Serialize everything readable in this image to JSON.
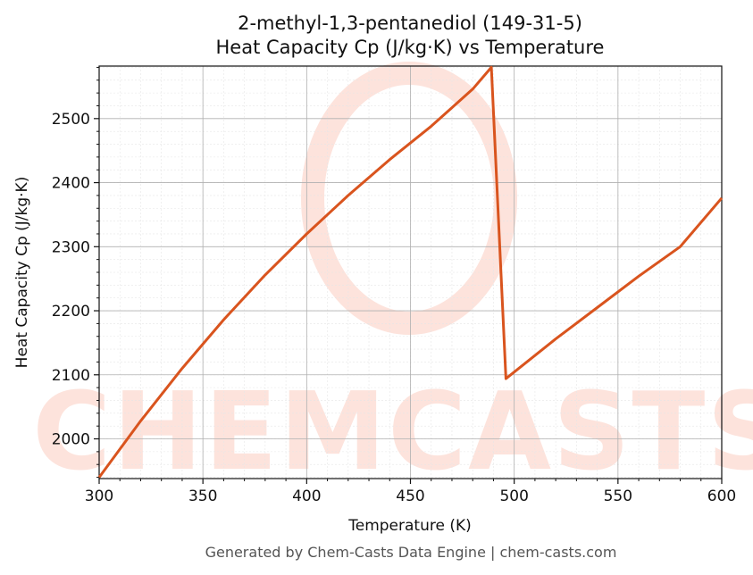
{
  "chart_data": {
    "type": "line",
    "title": "2-methyl-1,3-pentanediol (149-31-5)",
    "subtitle": "Heat Capacity Cp (J/kg·K) vs Temperature",
    "xlabel": "Temperature (K)",
    "ylabel": "Heat Capacity Cp (J/kg·K)",
    "xlim": [
      300,
      600
    ],
    "ylim": [
      1938,
      2582
    ],
    "xticks": [
      300,
      350,
      400,
      450,
      500,
      550,
      600
    ],
    "yticks": [
      2000,
      2100,
      2200,
      2300,
      2400,
      2500
    ],
    "grid": true,
    "line_color": "#d9541e",
    "series": [
      {
        "x": [
          300,
          320,
          340,
          360,
          380,
          400,
          420,
          440,
          460,
          480,
          489,
          496,
          520,
          540,
          560,
          580,
          600
        ],
        "y": [
          1940,
          2028,
          2110,
          2186,
          2256,
          2320,
          2380,
          2436,
          2488,
          2546,
          2580,
          2094,
          2156,
          2205,
          2254,
          2300,
          2376
        ]
      }
    ]
  },
  "footer": "Generated by Chem-Casts Data Engine | chem-casts.com",
  "watermark": "CHEMCASTS"
}
